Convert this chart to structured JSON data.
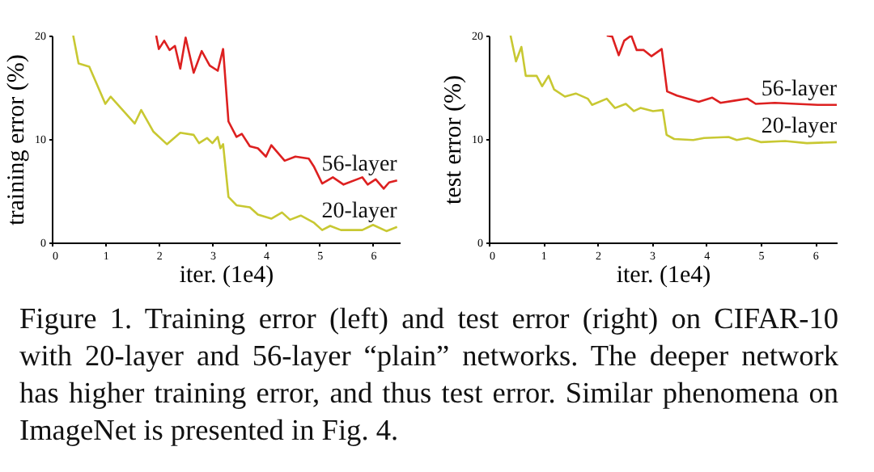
{
  "chart_data": [
    {
      "type": "line",
      "xlabel": "iter. (1e4)",
      "ylabel": "training error (%)",
      "xlim": [
        0,
        6.5
      ],
      "ylim": [
        0,
        20
      ],
      "xticks": [
        0,
        1,
        2,
        3,
        4,
        5,
        6
      ],
      "yticks": [
        0,
        10,
        20
      ],
      "grid": false,
      "legend": false,
      "series": [
        {
          "name": "56-layer",
          "color": "#dd2020",
          "x": [
            1.95,
            2.0,
            2.1,
            2.2,
            2.3,
            2.4,
            2.5,
            2.65,
            2.8,
            2.95,
            3.1,
            3.2,
            3.3,
            3.45,
            3.55,
            3.7,
            3.85,
            4.0,
            4.1,
            4.35,
            4.55,
            4.8,
            4.9,
            5.05,
            5.25,
            5.45,
            5.8,
            5.9,
            6.05,
            6.2,
            6.3,
            6.45
          ],
          "values": [
            20,
            18.7,
            19.5,
            18.6,
            19.0,
            16.8,
            19.8,
            16.4,
            18.5,
            17.1,
            16.6,
            18.7,
            11.7,
            10.2,
            10.5,
            9.3,
            9.1,
            8.3,
            9.4,
            7.9,
            8.3,
            8.1,
            7.3,
            5.7,
            6.3,
            5.6,
            6.3,
            5.6,
            6.1,
            5.2,
            5.8,
            6.0
          ]
        },
        {
          "name": "20-layer",
          "color": "#c8c832",
          "x": [
            0.4,
            0.5,
            0.7,
            1.0,
            1.1,
            1.55,
            1.67,
            1.9,
            2.15,
            2.4,
            2.65,
            2.75,
            2.9,
            3.0,
            3.1,
            3.15,
            3.2,
            3.3,
            3.45,
            3.7,
            3.85,
            4.1,
            4.3,
            4.45,
            4.65,
            4.9,
            5.05,
            5.2,
            5.4,
            5.8,
            6.0,
            6.25,
            6.45
          ],
          "values": [
            20,
            17.3,
            17.0,
            13.4,
            14.1,
            11.5,
            12.8,
            10.7,
            9.5,
            10.6,
            10.4,
            9.6,
            10.1,
            9.6,
            10.2,
            9.1,
            9.5,
            4.4,
            3.6,
            3.4,
            2.7,
            2.3,
            2.9,
            2.2,
            2.6,
            1.9,
            1.2,
            1.6,
            1.2,
            1.2,
            1.7,
            1.1,
            1.5
          ]
        }
      ]
    },
    {
      "type": "line",
      "xlabel": "iter. (1e4)",
      "ylabel": "test error (%)",
      "xlim": [
        0,
        6.4
      ],
      "ylim": [
        0,
        20
      ],
      "xticks": [
        0,
        1,
        2,
        3,
        4,
        5,
        6
      ],
      "yticks": [
        0,
        10,
        20
      ],
      "grid": false,
      "legend": false,
      "series": [
        {
          "name": "56-layer",
          "color": "#dd2020",
          "x": [
            2.17,
            2.27,
            2.39,
            2.49,
            2.62,
            2.72,
            2.85,
            2.99,
            3.18,
            3.28,
            3.46,
            3.86,
            4.11,
            4.26,
            4.51,
            4.76,
            4.91,
            5.26,
            5.65,
            6.05,
            6.4
          ],
          "values": [
            20,
            19.9,
            18.1,
            19.5,
            20,
            18.6,
            18.6,
            18.0,
            18.7,
            14.6,
            14.2,
            13.6,
            14.0,
            13.5,
            13.7,
            13.9,
            13.4,
            13.5,
            13.4,
            13.3,
            13.3
          ]
        },
        {
          "name": "20-layer",
          "color": "#c8c832",
          "x": [
            0.4,
            0.5,
            0.6,
            0.68,
            0.88,
            0.98,
            1.1,
            1.2,
            1.4,
            1.6,
            1.82,
            1.9,
            2.17,
            2.32,
            2.52,
            2.67,
            2.79,
            3.02,
            3.2,
            3.27,
            3.41,
            3.76,
            3.96,
            4.41,
            4.56,
            4.76,
            5.0,
            5.45,
            5.85,
            6.4
          ],
          "values": [
            20,
            17.5,
            18.9,
            16.1,
            16.1,
            15.1,
            16.1,
            14.8,
            14.1,
            14.4,
            13.9,
            13.3,
            13.9,
            13.0,
            13.4,
            12.7,
            13.0,
            12.7,
            12.8,
            10.4,
            10.0,
            9.9,
            10.1,
            10.2,
            9.9,
            10.1,
            9.7,
            9.8,
            9.6,
            9.7
          ]
        }
      ]
    },
    {
      "type": "other",
      "annotations": [
        "Figure 1. Training error (left) and test error (right) on CIFAR-10 with 20-layer and 56-layer “plain” networks. The deeper network has higher training error, and thus test error. Similar phenomena on ImageNet is presented in Fig. 4."
      ]
    }
  ]
}
